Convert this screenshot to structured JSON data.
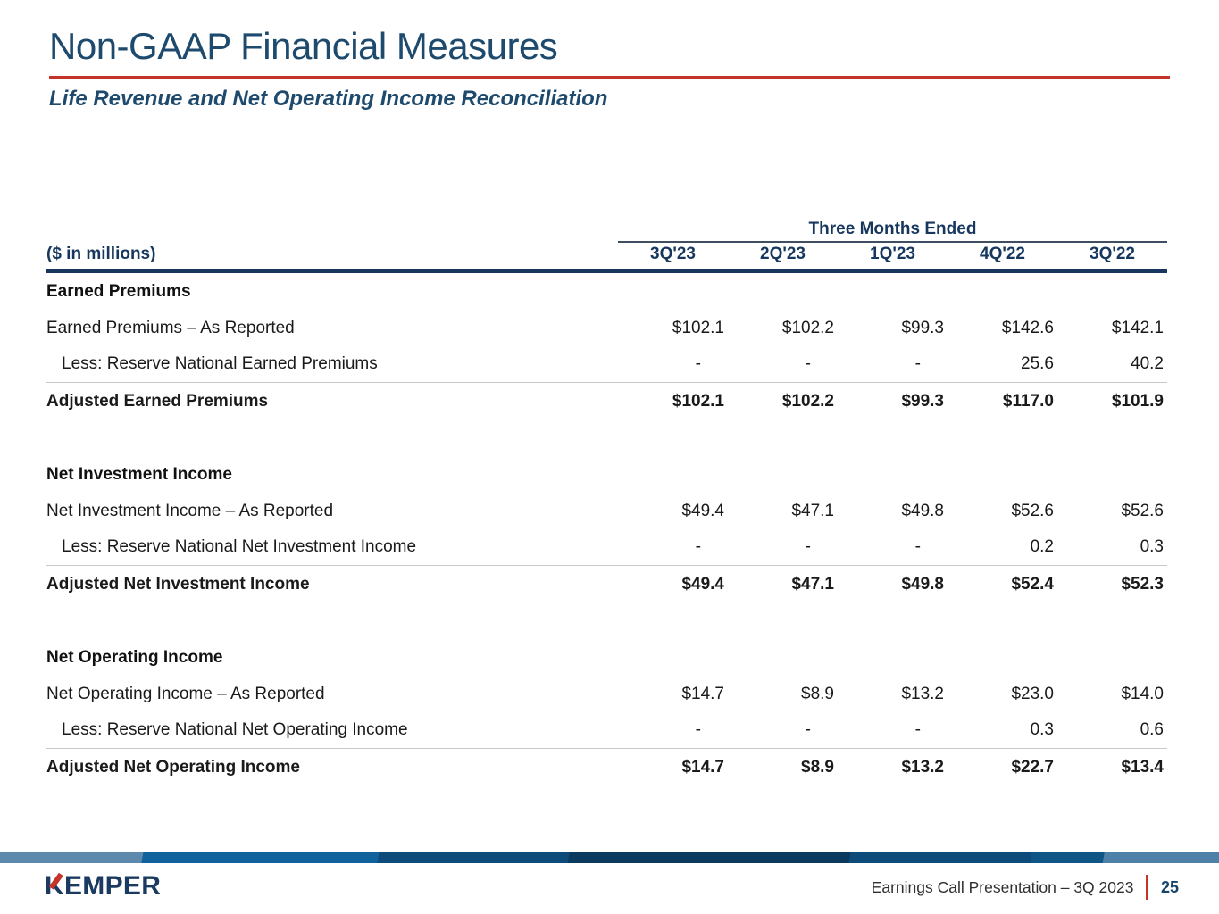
{
  "slide": {
    "title": "Non-GAAP Financial Measures",
    "subtitle": "Life Revenue and Net Operating Income Reconciliation"
  },
  "table": {
    "units_label": "($ in millions)",
    "span_header": "Three Months Ended",
    "columns": [
      "3Q'23",
      "2Q'23",
      "1Q'23",
      "4Q'22",
      "3Q'22"
    ],
    "sections": [
      {
        "header": "Earned Premiums",
        "rows": [
          {
            "label": "Earned Premiums – As Reported",
            "values": [
              "$102.1",
              "$102.2",
              "$99.3",
              "$142.6",
              "$142.1"
            ]
          },
          {
            "label": "Less: Reserve National Earned Premiums",
            "values": [
              "-",
              "-",
              "-",
              "25.6",
              "40.2"
            ]
          },
          {
            "label": "Adjusted Earned Premiums",
            "values": [
              "$102.1",
              "$102.2",
              "$99.3",
              "$117.0",
              "$101.9"
            ]
          }
        ]
      },
      {
        "header": "Net Investment Income",
        "rows": [
          {
            "label": "Net Investment Income – As Reported",
            "values": [
              "$49.4",
              "$47.1",
              "$49.8",
              "$52.6",
              "$52.6"
            ]
          },
          {
            "label": "Less: Reserve National Net Investment Income",
            "values": [
              "-",
              "-",
              "-",
              "0.2",
              "0.3"
            ]
          },
          {
            "label": "Adjusted Net Investment Income",
            "values": [
              "$49.4",
              "$47.1",
              "$49.8",
              "$52.4",
              "$52.3"
            ]
          }
        ]
      },
      {
        "header": "Net Operating Income",
        "rows": [
          {
            "label": "Net Operating Income – As Reported",
            "values": [
              "$14.7",
              "$8.9",
              "$13.2",
              "$23.0",
              "$14.0"
            ]
          },
          {
            "label": "Less: Reserve National Net Operating Income",
            "values": [
              "-",
              "-",
              "-",
              "0.3",
              "0.6"
            ]
          },
          {
            "label": "Adjusted Net Operating Income",
            "values": [
              "$14.7",
              "$8.9",
              "$13.2",
              "$22.7",
              "$13.4"
            ]
          }
        ]
      }
    ]
  },
  "footer": {
    "logo": {
      "k": "K",
      "rest": "EMPER"
    },
    "presentation_label": "Earnings Call Presentation – 3Q 2023",
    "page_number": "25"
  },
  "colors": {
    "navy": "#1d4a6d",
    "navy-dark": "#17375e",
    "red": "#c5342b",
    "ink": "#1a1a1a",
    "gray-line": "#c9c9c9"
  }
}
